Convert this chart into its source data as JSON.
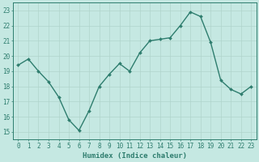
{
  "x": [
    0,
    1,
    2,
    3,
    4,
    5,
    6,
    7,
    8,
    9,
    10,
    11,
    12,
    13,
    14,
    15,
    16,
    17,
    18,
    19,
    20,
    21,
    22,
    23
  ],
  "y": [
    19.4,
    19.8,
    19.0,
    18.3,
    17.3,
    15.8,
    15.1,
    16.4,
    18.0,
    18.8,
    19.5,
    19.0,
    20.2,
    21.0,
    21.1,
    21.2,
    22.0,
    22.9,
    22.6,
    20.9,
    18.4,
    17.8,
    17.5,
    18.0
  ],
  "line_color": "#2e7d6e",
  "marker": "D",
  "marker_size": 2.0,
  "line_width": 1.0,
  "xlabel": "Humidex (Indice chaleur)",
  "xlabel_fontsize": 6.5,
  "xlim": [
    -0.5,
    23.5
  ],
  "ylim": [
    14.5,
    23.5
  ],
  "yticks": [
    15,
    16,
    17,
    18,
    19,
    20,
    21,
    22,
    23
  ],
  "xticks": [
    0,
    1,
    2,
    3,
    4,
    5,
    6,
    7,
    8,
    9,
    10,
    11,
    12,
    13,
    14,
    15,
    16,
    17,
    18,
    19,
    20,
    21,
    22,
    23
  ],
  "bg_color": "#c5e8e2",
  "grid_color": "#b0d4cc",
  "tick_label_fontsize": 5.5,
  "tick_color": "#2e7d6e",
  "border_color": "#2e7d6e",
  "fig_bg_color": "#c5e8e2"
}
